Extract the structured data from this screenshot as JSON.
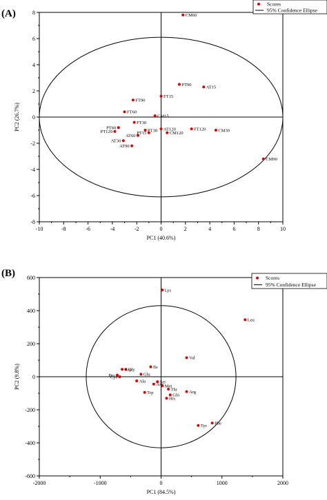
{
  "chart_data": [
    {
      "type": "scatter",
      "panel_label": "(A)",
      "xlabel": "PC1 (40.6%)",
      "ylabel": "PC2 (26.7%)",
      "xlim": [
        -10,
        10
      ],
      "ylim": [
        -8,
        8
      ],
      "xticks": [
        -10,
        -8,
        -6,
        -4,
        -2,
        0,
        2,
        4,
        6,
        8,
        10
      ],
      "yticks": [
        -8,
        -6,
        -4,
        -2,
        0,
        2,
        4,
        6,
        8
      ],
      "legend": {
        "position": "top-right",
        "entries": [
          "Scores",
          "95% Confidence Ellipse"
        ]
      },
      "ellipse": {
        "cx": 0,
        "cy": 0,
        "rx": 10.0,
        "ry": 6.1
      },
      "points": [
        {
          "label": "CM60",
          "x": 1.8,
          "y": 7.8
        },
        {
          "label": "PT90",
          "x": 1.5,
          "y": 2.5
        },
        {
          "label": "AT15",
          "x": 3.5,
          "y": 2.3
        },
        {
          "label": "FT15",
          "x": 0.0,
          "y": 1.6
        },
        {
          "label": "FT90",
          "x": -2.3,
          "y": 1.3
        },
        {
          "label": "FT60",
          "x": -3.0,
          "y": 0.4
        },
        {
          "label": "CM15",
          "x": -0.5,
          "y": 0.1
        },
        {
          "label": "FT30",
          "x": -2.2,
          "y": -0.4
        },
        {
          "label": "PT60",
          "x": -3.5,
          "y": -0.8
        },
        {
          "label": "PT30",
          "x": -1.3,
          "y": -1.0
        },
        {
          "label": "PT120",
          "x": -3.8,
          "y": -1.1
        },
        {
          "label": "PT15",
          "x": -1.0,
          "y": -1.2
        },
        {
          "label": "AT60",
          "x": -1.9,
          "y": -1.4
        },
        {
          "label": "AT120",
          "x": 0.0,
          "y": -0.9
        },
        {
          "label": "CM120",
          "x": 0.5,
          "y": -1.2
        },
        {
          "label": "FT120",
          "x": 2.5,
          "y": -0.9
        },
        {
          "label": "CM30",
          "x": 4.5,
          "y": -1.0
        },
        {
          "label": "AT30",
          "x": -3.1,
          "y": -1.8
        },
        {
          "label": "AT90",
          "x": -2.4,
          "y": -2.2
        },
        {
          "label": "CM90",
          "x": 8.4,
          "y": -3.2
        }
      ]
    },
    {
      "type": "scatter",
      "panel_label": "(B)",
      "xlabel": "PC1 (84.5%)",
      "ylabel": "PC2 (9.8%)",
      "xlim": [
        -2000,
        2000
      ],
      "ylim": [
        -600,
        600
      ],
      "xticks": [
        -2000,
        -1000,
        0,
        1000,
        2000
      ],
      "yticks": [
        -600,
        -400,
        -200,
        0,
        200,
        400,
        600
      ],
      "legend": {
        "position": "top-right",
        "entries": [
          "Scores",
          "95% Confidence Ellipse"
        ]
      },
      "ellipse": {
        "cx": 0,
        "cy": 0,
        "rx": 1230,
        "ry": 430
      },
      "points": [
        {
          "label": "Lys",
          "x": 20,
          "y": 525
        },
        {
          "label": "Leu",
          "x": 1380,
          "y": 345
        },
        {
          "label": "Val",
          "x": 420,
          "y": 115
        },
        {
          "label": "Ile",
          "x": -170,
          "y": 60
        },
        {
          "label": "Gly",
          "x": -580,
          "y": 45
        },
        {
          "label": "Asp",
          "x": -640,
          "y": 45
        },
        {
          "label": "Glu",
          "x": -330,
          "y": 15
        },
        {
          "label": "Pro",
          "x": -720,
          "y": 10
        },
        {
          "label": "Cys",
          "x": -680,
          "y": 0
        },
        {
          "label": "Ala",
          "x": -400,
          "y": -25
        },
        {
          "label": "Ser",
          "x": -60,
          "y": -30
        },
        {
          "label": "Asn",
          "x": -120,
          "y": -45
        },
        {
          "label": "Met",
          "x": 20,
          "y": -55
        },
        {
          "label": "Thr",
          "x": 120,
          "y": -75
        },
        {
          "label": "Arg",
          "x": 420,
          "y": -90
        },
        {
          "label": "Trp",
          "x": -270,
          "y": -95
        },
        {
          "label": "Gln",
          "x": 150,
          "y": -110
        },
        {
          "label": "His",
          "x": 90,
          "y": -130
        },
        {
          "label": "Phe",
          "x": 840,
          "y": -280
        },
        {
          "label": "Tyr",
          "x": 610,
          "y": -295
        }
      ]
    }
  ]
}
